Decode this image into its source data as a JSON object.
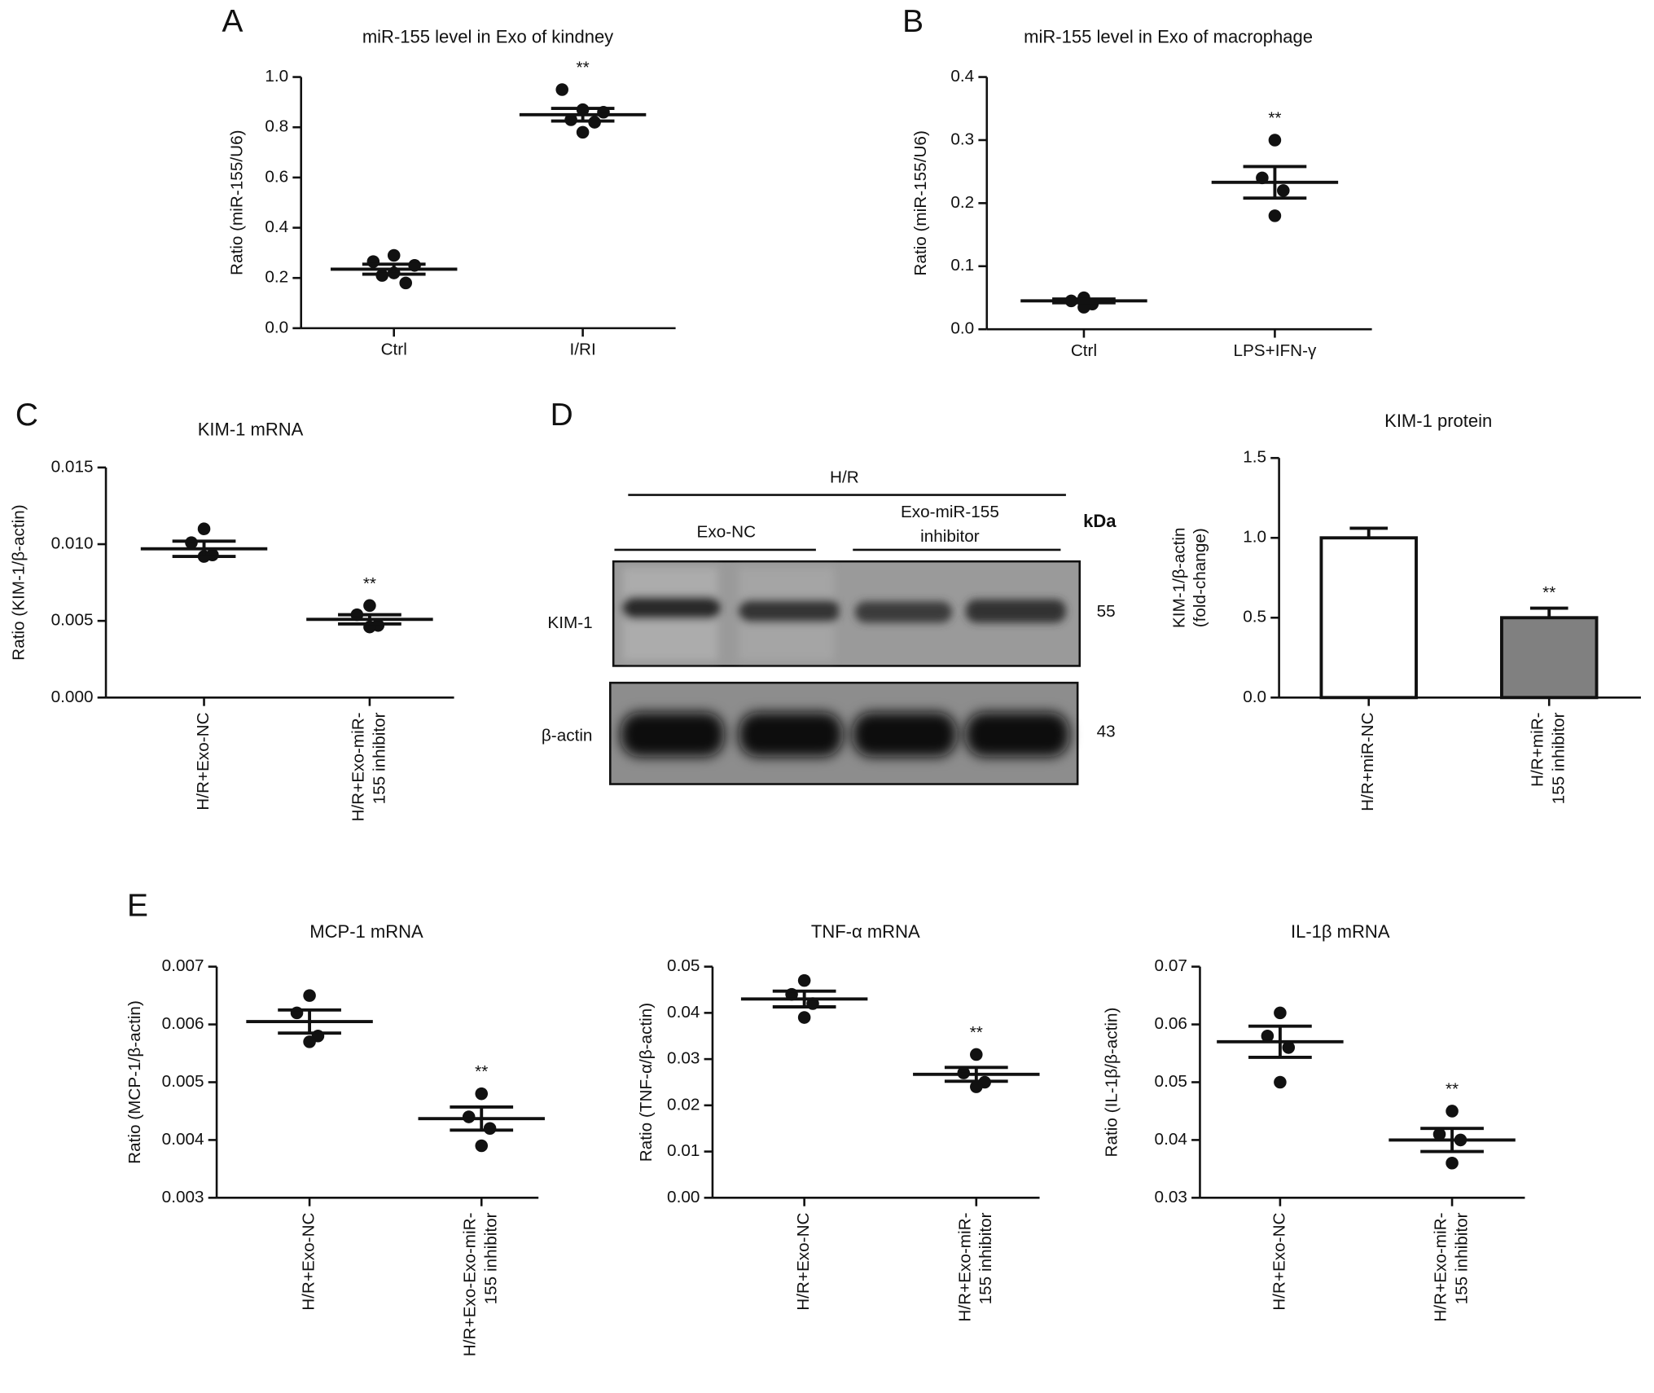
{
  "panel_labels": [
    "A",
    "B",
    "C",
    "D",
    "E"
  ],
  "blot": {
    "group": "H/R",
    "lanes": [
      "Exo-NC",
      [
        "Exo-miR-155",
        "inhibitor"
      ]
    ],
    "unit": "kDa",
    "proteins": [
      "KIM-1",
      "β-actin"
    ],
    "sizes": [
      "55",
      "43"
    ]
  },
  "chart_data": [
    {
      "type": "dotplot",
      "title": "miR-155 level in Exo of kindney",
      "ylabel": [
        "Ratio (miR-155/U6)"
      ],
      "categories": [
        [
          "Ctrl"
        ],
        [
          "I/RI"
        ]
      ],
      "points": [
        [
          0.265,
          0.29,
          0.25,
          0.21,
          0.18,
          0.22
        ],
        [
          0.95,
          0.87,
          0.86,
          0.83,
          0.82,
          0.78
        ]
      ],
      "means": [
        0.235,
        0.85
      ],
      "sems": [
        0.02,
        0.025
      ],
      "significance": [
        null,
        "**"
      ],
      "ylim": [
        0,
        1.0
      ],
      "yticks": [
        {
          "value": 0,
          "label": "0.0"
        },
        0.2,
        0.4,
        0.6,
        0.8,
        {
          "value": 1.0,
          "label": "1.0"
        }
      ]
    },
    {
      "type": "dotplot",
      "title": "miR-155 level in Exo of macrophage",
      "ylabel": [
        "Ratio (miR-155/U6)"
      ],
      "categories": [
        [
          "Ctrl"
        ],
        [
          "LPS+IFN-γ"
        ]
      ],
      "points": [
        [
          0.05,
          0.045,
          0.04,
          0.035
        ],
        [
          0.3,
          0.24,
          0.22,
          0.18
        ]
      ],
      "means": [
        0.045,
        0.233
      ],
      "sems": [
        0.003,
        0.025
      ],
      "significance": [
        null,
        "**"
      ],
      "ylim": [
        0,
        0.4
      ],
      "yticks": [
        {
          "value": 0,
          "label": "0.0"
        },
        0.1,
        0.2,
        0.3,
        0.4
      ]
    },
    {
      "type": "dotplot",
      "title": "KIM-1 mRNA",
      "ylabel": [
        "Ratio (KIM-1/β-actin)"
      ],
      "categories": [
        [
          "H/R+Exo-NC"
        ],
        [
          "H/R+Exo-miR-",
          "155 inhibitor"
        ]
      ],
      "points": [
        [
          0.011,
          0.0101,
          0.0093,
          0.0092
        ],
        [
          0.006,
          0.0054,
          0.0047,
          0.0046
        ]
      ],
      "means": [
        0.0097,
        0.0051
      ],
      "sems": [
        0.0005,
        0.0003
      ],
      "significance": [
        null,
        "**"
      ],
      "ylim": [
        0,
        0.015
      ],
      "yticks": [
        {
          "value": 0,
          "label": "0.000"
        },
        0.005,
        {
          "value": 0.01,
          "label": "0.010"
        },
        0.015
      ]
    },
    {
      "type": "bar",
      "title": "KIM-1 protein",
      "ylabel": [
        "KIM-1/β-actin",
        "(fold-change)"
      ],
      "categories": [
        [
          "H/R+miR-NC"
        ],
        [
          "H/R+miR-",
          "155 inhibitor"
        ]
      ],
      "values": [
        1.0,
        0.5
      ],
      "errors": [
        0.06,
        0.06
      ],
      "colors": [
        "#ffffff",
        "#808080"
      ],
      "significance": [
        null,
        "**"
      ],
      "ylim": [
        0,
        1.5
      ],
      "yticks": [
        {
          "value": 0,
          "label": "0.0"
        },
        0.5,
        {
          "value": 1.0,
          "label": "1.0"
        },
        1.5
      ]
    },
    {
      "type": "dotplot",
      "title": "MCP-1 mRNA",
      "ylabel": [
        "Ratio (MCP-1/β-actin)"
      ],
      "categories": [
        [
          "H/R+Exo-NC"
        ],
        [
          "H/R+Exo-Exo-miR-",
          "155 inhibitor"
        ]
      ],
      "points": [
        [
          0.0065,
          0.0062,
          0.0058,
          0.0057
        ],
        [
          0.0048,
          0.0044,
          0.0042,
          0.0039
        ]
      ],
      "means": [
        0.00605,
        0.00437
      ],
      "sems": [
        0.0002,
        0.0002
      ],
      "significance": [
        null,
        "**"
      ],
      "ylim": [
        0.003,
        0.007
      ],
      "yticks": [
        0.003,
        0.004,
        0.005,
        0.006,
        0.007
      ]
    },
    {
      "type": "dotplot",
      "title": "TNF-α mRNA",
      "ylabel": [
        "Ratio (TNF-α/β-actin)"
      ],
      "categories": [
        [
          "H/R+Exo-NC"
        ],
        [
          "H/R+Exo-miR-",
          "155 inhibitor"
        ]
      ],
      "points": [
        [
          0.047,
          0.044,
          0.042,
          0.039
        ],
        [
          0.031,
          0.027,
          0.025,
          0.024
        ]
      ],
      "means": [
        0.043,
        0.0267
      ],
      "sems": [
        0.0017,
        0.0015
      ],
      "significance": [
        null,
        "**"
      ],
      "ylim": [
        0,
        0.05
      ],
      "yticks": [
        {
          "value": 0,
          "label": "0.00"
        },
        0.01,
        0.02,
        0.03,
        0.04,
        0.05
      ]
    },
    {
      "type": "dotplot",
      "title": "IL-1β mRNA",
      "ylabel": [
        "Ratio (IL-1β/β-actin)"
      ],
      "categories": [
        [
          "H/R+Exo-NC"
        ],
        [
          "H/R+Exo-miR-",
          "155 inhibitor"
        ]
      ],
      "points": [
        [
          0.062,
          0.058,
          0.056,
          0.05
        ],
        [
          0.045,
          0.041,
          0.04,
          0.036
        ]
      ],
      "means": [
        0.057,
        0.04
      ],
      "sems": [
        0.0027,
        0.002
      ],
      "significance": [
        null,
        "**"
      ],
      "ylim": [
        0.03,
        0.07
      ],
      "yticks": [
        0.03,
        0.04,
        0.05,
        0.06,
        0.07
      ]
    }
  ]
}
